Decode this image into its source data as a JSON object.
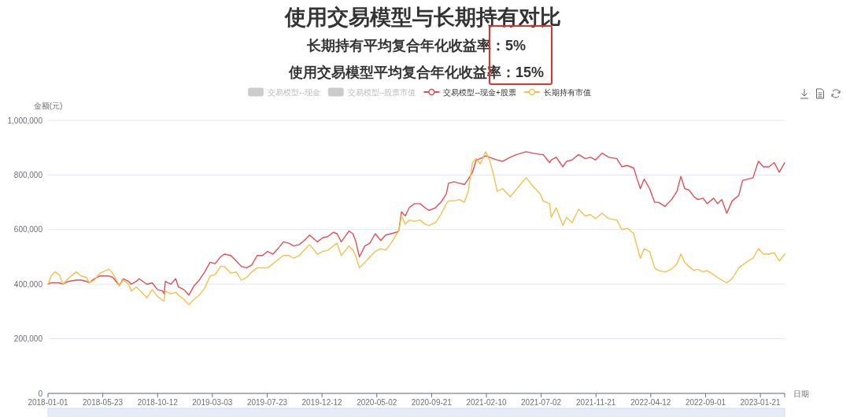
{
  "chart_data": {
    "type": "line",
    "title": "使用交易模型与长期持有对比",
    "subtitle": "长期持有平均复合年化收益率：5%\n使用交易模型平均复合年化收益率：15%",
    "xlabel": "日期",
    "ylabel": "金额(元)",
    "xlim": [
      "2018-01-01",
      "2023-03-25"
    ],
    "ylim": [
      0,
      1000000
    ],
    "xticks": [
      "2018-01-01",
      "2018-05-23",
      "2018-10-12",
      "2019-03-03",
      "2019-07-23",
      "2019-12-12",
      "2020-05-02",
      "2020-09-21",
      "2021-02-10",
      "2021-07-02",
      "2021-11-21",
      "2022-04-12",
      "2022-09-01",
      "2023-01-21",
      {
        "value": "2023-03-25",
        "label": null
      }
    ],
    "yticks": [
      0,
      {
        "value": 200000,
        "label": "200,000"
      },
      {
        "value": 400000,
        "label": "400,000"
      },
      {
        "value": 600000,
        "label": "600,000"
      },
      {
        "value": 800000,
        "label": "800,000"
      },
      {
        "value": 1000000,
        "label": "1,000,000"
      }
    ],
    "grid": "y",
    "legend": "top",
    "x": [
      "2018-01-01",
      "2018-01-09",
      "2018-01-19",
      "2018-01-30",
      "2018-02-09",
      "2018-02-22",
      "2018-03-15",
      "2018-03-28",
      "2018-04-11",
      "2018-04-18",
      "2018-05-01",
      "2018-05-15",
      "2018-06-08",
      "2018-06-18",
      "2018-07-05",
      "2018-07-15",
      "2018-07-29",
      "2018-08-05",
      "2018-08-18",
      "2018-08-25",
      "2018-09-14",
      "2018-09-28",
      "2018-10-12",
      "2018-10-25",
      "2018-10-29",
      "2018-11-01",
      "2018-11-15",
      "2018-11-28",
      "2018-12-05",
      "2018-12-19",
      "2019-01-01",
      "2019-01-15",
      "2019-01-28",
      "2019-02-11",
      "2019-02-25",
      "2019-03-10",
      "2019-03-24",
      "2019-04-03",
      "2019-04-20",
      "2019-05-04",
      "2019-05-17",
      "2019-05-31",
      "2019-06-13",
      "2019-06-27",
      "2019-07-11",
      "2019-07-24",
      "2019-08-07",
      "2019-08-20",
      "2019-09-03",
      "2019-09-17",
      "2019-09-30",
      "2019-10-14",
      "2019-10-27",
      "2019-11-10",
      "2019-11-30",
      "2019-12-14",
      "2019-12-28",
      "2020-01-10",
      "2020-01-20",
      "2020-01-31",
      "2020-02-20",
      "2020-03-01",
      "2020-03-08",
      "2020-03-18",
      "2020-04-01",
      "2020-04-14",
      "2020-04-28",
      "2020-05-12",
      "2020-05-25",
      "2020-06-08",
      "2020-06-21",
      "2020-06-28",
      "2020-07-05",
      "2020-07-15",
      "2020-07-25",
      "2020-08-08",
      "2020-08-22",
      "2020-09-04",
      "2020-09-14",
      "2020-10-01",
      "2020-10-15",
      "2020-10-29",
      "2020-11-04",
      "2020-11-18",
      "2020-12-02",
      "2020-12-15",
      "2020-12-25",
      "2021-01-05",
      "2021-01-15",
      "2021-01-25",
      "2021-02-08",
      "2021-02-18",
      "2021-02-28",
      "2021-03-10",
      "2021-03-24",
      "2021-04-13",
      "2021-04-30",
      "2021-05-24",
      "2021-06-10",
      "2021-06-30",
      "2021-07-07",
      "2021-07-24",
      "2021-07-28",
      "2021-08-10",
      "2021-08-27",
      "2021-09-06",
      "2021-09-20",
      "2021-10-07",
      "2021-10-24",
      "2021-11-07",
      "2021-11-20",
      "2021-12-07",
      "2021-12-24",
      "2022-01-14",
      "2022-01-27",
      "2022-02-10",
      "2022-02-27",
      "2022-03-09",
      "2022-03-16",
      "2022-03-26",
      "2022-04-09",
      "2022-04-22",
      "2022-05-02",
      "2022-05-19",
      "2022-06-05",
      "2022-06-19",
      "2022-06-29",
      "2022-07-09",
      "2022-07-20",
      "2022-08-02",
      "2022-08-12",
      "2022-08-26",
      "2022-09-05",
      "2022-09-22",
      "2022-10-02",
      "2022-10-13",
      "2022-10-26",
      "2022-11-09",
      "2022-11-26",
      "2022-12-06",
      "2022-12-20",
      "2023-01-02",
      "2023-01-16",
      "2023-01-29",
      "2023-02-12",
      "2023-02-26",
      "2023-03-11",
      "2023-03-25"
    ],
    "series": [
      {
        "name": "交易模型--现金",
        "type": "bar",
        "color": "#cccccc",
        "values": [
          null,
          null,
          null,
          null,
          null,
          null,
          null,
          null,
          null,
          null,
          null,
          null,
          null,
          null,
          null,
          null,
          null,
          null,
          null,
          null,
          null,
          null,
          null,
          null,
          null,
          null,
          null,
          null,
          null,
          null,
          null,
          null,
          null,
          null,
          null,
          null,
          null,
          null,
          null,
          null,
          null,
          null,
          null,
          null,
          null,
          null,
          null,
          null,
          null,
          null,
          null,
          null,
          null,
          null,
          null,
          null,
          null,
          null,
          null,
          null,
          null,
          null,
          null,
          null,
          null,
          null,
          null,
          null,
          null,
          null,
          null,
          null,
          null,
          null,
          null,
          null,
          null,
          null,
          null,
          null,
          null,
          null,
          null,
          null,
          null,
          null,
          null,
          null,
          null,
          null,
          null,
          null,
          null,
          null,
          null,
          null,
          null,
          null,
          null,
          null,
          null,
          null,
          null,
          null,
          null,
          null,
          null,
          null,
          null,
          null,
          null,
          null,
          null,
          null,
          null,
          null,
          null,
          null,
          null,
          null,
          null,
          null,
          null,
          null,
          null,
          null,
          null,
          null,
          null,
          null,
          null,
          null,
          null,
          null,
          null,
          null,
          null,
          null,
          null,
          null,
          null,
          null,
          null,
          null,
          null,
          null,
          null,
          null
        ]
      },
      {
        "name": "交易模型--股票市值",
        "type": "bar",
        "color": "#cccccc",
        "values": [
          null,
          null,
          null,
          null,
          null,
          null,
          null,
          null,
          null,
          null,
          null,
          null,
          null,
          null,
          null,
          null,
          null,
          null,
          null,
          null,
          null,
          null,
          null,
          null,
          null,
          null,
          null,
          null,
          null,
          null,
          null,
          null,
          null,
          null,
          null,
          null,
          null,
          null,
          null,
          null,
          null,
          null,
          null,
          null,
          null,
          null,
          null,
          null,
          null,
          null,
          null,
          null,
          null,
          null,
          null,
          null,
          null,
          null,
          null,
          null,
          null,
          null,
          null,
          null,
          null,
          null,
          null,
          null,
          null,
          null,
          null,
          null,
          null,
          null,
          null,
          null,
          null,
          null,
          null,
          null,
          null,
          null,
          null,
          null,
          null,
          null,
          null,
          null,
          null,
          null,
          null,
          null,
          null,
          null,
          null,
          null,
          null,
          null,
          null,
          null,
          null,
          null,
          null,
          null,
          null,
          null,
          null,
          null,
          null,
          null,
          null,
          null,
          null,
          null,
          null,
          null,
          null,
          null,
          null,
          null,
          null,
          null,
          null,
          null,
          null,
          null,
          null,
          null,
          null,
          null,
          null,
          null,
          null,
          null,
          null,
          null,
          null,
          null,
          null,
          null,
          null,
          null,
          null,
          null,
          null,
          null,
          null,
          null
        ]
      },
      {
        "name": "交易模型--现金+股票",
        "color": "#e84b55",
        "values": [
          400000,
          405000,
          405000,
          405000,
          400000,
          410000,
          415000,
          415000,
          410000,
          405000,
          420000,
          430000,
          430000,
          425000,
          395000,
          420000,
          410000,
          400000,
          410000,
          420000,
          400000,
          405000,
          380000,
          375000,
          365000,
          410000,
          400000,
          420000,
          390000,
          380000,
          360000,
          395000,
          415000,
          445000,
          480000,
          475000,
          500000,
          510000,
          505000,
          485000,
          465000,
          460000,
          470000,
          505000,
          505000,
          520000,
          510000,
          530000,
          555000,
          550000,
          540000,
          545000,
          560000,
          580000,
          555000,
          570000,
          575000,
          590000,
          585000,
          555000,
          595000,
          585000,
          560000,
          500000,
          540000,
          550000,
          585000,
          560000,
          580000,
          585000,
          590000,
          595000,
          665000,
          650000,
          680000,
          695000,
          695000,
          680000,
          670000,
          680000,
          700000,
          730000,
          770000,
          775000,
          770000,
          765000,
          785000,
          810000,
          855000,
          860000,
          870000,
          865000,
          860000,
          855000,
          850000,
          865000,
          875000,
          885000,
          880000,
          875000,
          875000,
          845000,
          855000,
          865000,
          830000,
          850000,
          855000,
          875000,
          860000,
          865000,
          855000,
          880000,
          865000,
          860000,
          830000,
          835000,
          825000,
          780000,
          750000,
          785000,
          750000,
          700000,
          700000,
          685000,
          710000,
          740000,
          795000,
          750000,
          745000,
          720000,
          710000,
          715000,
          695000,
          715000,
          695000,
          710000,
          660000,
          705000,
          725000,
          780000,
          785000,
          790000,
          850000,
          830000,
          830000,
          845000,
          810000,
          845000
        ]
      },
      {
        "name": "长期持有市值",
        "color": "#f5c04a",
        "values": [
          400000,
          430000,
          445000,
          435000,
          400000,
          420000,
          445000,
          430000,
          425000,
          405000,
          415000,
          440000,
          455000,
          440000,
          395000,
          415000,
          400000,
          375000,
          390000,
          380000,
          350000,
          380000,
          355000,
          340000,
          340000,
          375000,
          365000,
          370000,
          360000,
          345000,
          325000,
          345000,
          360000,
          385000,
          430000,
          435000,
          465000,
          465000,
          440000,
          445000,
          415000,
          425000,
          445000,
          460000,
          460000,
          460000,
          475000,
          490000,
          505000,
          505000,
          495000,
          505000,
          525000,
          545000,
          510000,
          520000,
          525000,
          540000,
          550000,
          505000,
          540000,
          525000,
          505000,
          460000,
          480000,
          500000,
          520000,
          530000,
          525000,
          550000,
          580000,
          595000,
          650000,
          620000,
          635000,
          630000,
          635000,
          620000,
          615000,
          625000,
          655000,
          695000,
          705000,
          705000,
          710000,
          700000,
          740000,
          845000,
          860000,
          840000,
          885000,
          855000,
          805000,
          740000,
          750000,
          720000,
          750000,
          790000,
          760000,
          730000,
          705000,
          695000,
          645000,
          680000,
          615000,
          645000,
          625000,
          675000,
          650000,
          655000,
          640000,
          660000,
          640000,
          635000,
          600000,
          605000,
          585000,
          530000,
          495000,
          530000,
          520000,
          460000,
          450000,
          445000,
          455000,
          475000,
          510000,
          480000,
          465000,
          450000,
          455000,
          445000,
          450000,
          435000,
          425000,
          415000,
          405000,
          420000,
          460000,
          470000,
          485000,
          495000,
          530000,
          510000,
          510000,
          515000,
          485000,
          510000
        ]
      }
    ]
  }
}
